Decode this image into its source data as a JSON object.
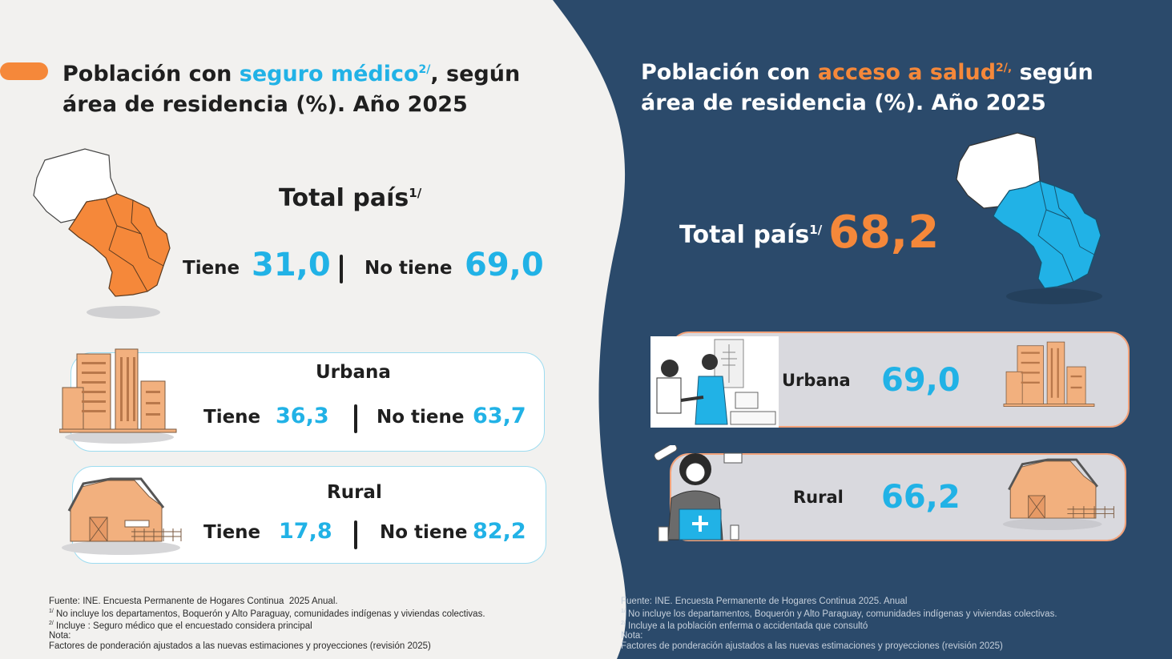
{
  "left": {
    "title_part1": "Población con ",
    "title_highlight": "seguro médico",
    "title_sup": "2/",
    "title_part2": ", según",
    "title_line2": "área de residencia (%).  Año 2025",
    "total_label": "Total país",
    "total_sup": "1/",
    "total_tiene_label": "Tiene",
    "total_tiene_value": "31,0",
    "total_notiene_label": "No tiene",
    "total_notiene_value": "69,0",
    "urbana": {
      "title": "Urbana",
      "tiene_label": "Tiene",
      "tiene_value": "36,3",
      "notiene_label": "No tiene",
      "notiene_value": "63,7"
    },
    "rural": {
      "title": "Rural",
      "tiene_label": "Tiene",
      "tiene_value": "17,8",
      "notiene_label": "No tiene",
      "notiene_value": "82,2"
    },
    "footnotes": {
      "fuente": "Fuente: INE. Encuesta Permanente de Hogares Continua  2025 Anual.",
      "note1_sup": "1/",
      "note1": " No incluye los departamentos, Boquerón y Alto Paraguay, comunidades indígenas y viviendas colectivas.",
      "note2_sup": "2/",
      "note2": " Incluye : Seguro médico que el encuestado considera principal",
      "nota": "Nota:",
      "factores": "Factores de ponderación ajustados a las nuevas estimaciones y proyecciones (revisión 2025)"
    }
  },
  "right": {
    "title_part1": "Población con ",
    "title_highlight": "acceso a salud",
    "title_sup": "2/,",
    "title_part2": " según",
    "title_line2": "área de residencia (%). Año 2025",
    "total_label": "Total país",
    "total_sup": "1/",
    "total_value": "68,2",
    "urbana": {
      "title": "Urbana",
      "value": "69,0"
    },
    "rural": {
      "title": "Rural",
      "value": "66,2"
    },
    "footnotes": {
      "fuente": "Fuente: INE. Encuesta Permanente de Hogares Continua 2025. Anual",
      "note1_sup": "1/",
      "note1": " No incluye los departamentos, Boquerón y Alto Paraguay, comunidades indígenas y viviendas colectivas.",
      "note2_sup": "2/",
      "note2": " Incluye a la población enferma o accidentada que consultó",
      "nota": "Nota:",
      "factores": "Factores de ponderación ajustados a las nuevas estimaciones y proyecciones (revisión 2025)"
    }
  },
  "colors": {
    "navy": "#2b4a6b",
    "light_bg": "#f2f1ef",
    "accent_blue": "#21b2e6",
    "accent_orange": "#f5883a",
    "building_orange": "#f2b07e"
  },
  "icons": [
    "paraguay-map-icon",
    "buildings-icon",
    "barn-icon",
    "doctor-patient-icon",
    "nurse-medkit-icon"
  ]
}
